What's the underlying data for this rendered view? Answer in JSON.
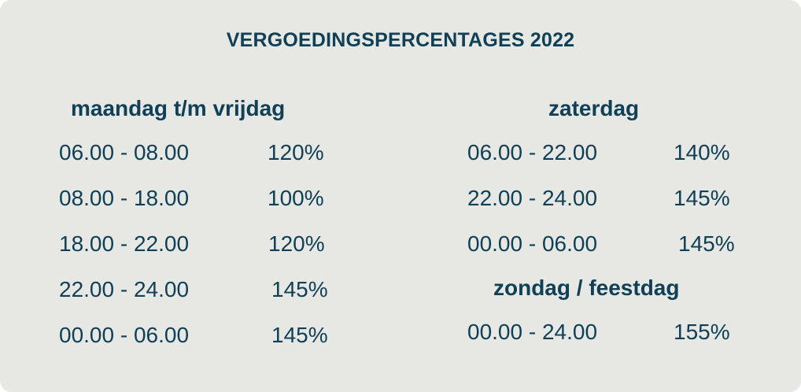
{
  "title": "VERGOEDINGSPERCENTAGES 2022",
  "weekdays": {
    "heading": "maandag t/m vrijdag",
    "rows": [
      {
        "time": "06.00 - 08.00",
        "pct": "120%"
      },
      {
        "time": "08.00 - 18.00",
        "pct": "100%"
      },
      {
        "time": "18.00 - 22.00",
        "pct": "120%"
      },
      {
        "time": "22.00 - 24.00",
        "pct": "145%"
      },
      {
        "time": "00.00 - 06.00",
        "pct": "145%"
      }
    ]
  },
  "saturday": {
    "heading": "zaterdag",
    "rows": [
      {
        "time": "06.00 - 22.00",
        "pct": "140%"
      },
      {
        "time": "22.00 - 24.00",
        "pct": "145%"
      },
      {
        "time": "00.00 - 06.00",
        "pct": "145%"
      }
    ]
  },
  "sunday": {
    "heading": "zondag / feestdag",
    "rows": [
      {
        "time": "00.00 - 24.00",
        "pct": "155%"
      }
    ]
  }
}
